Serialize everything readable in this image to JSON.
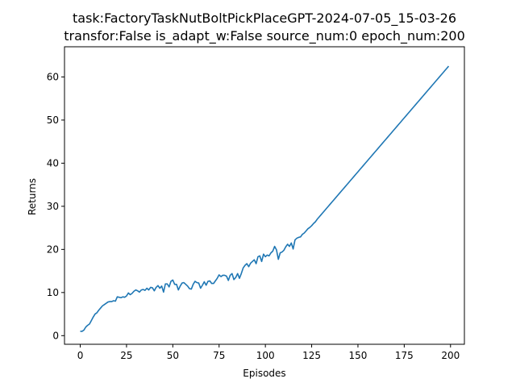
{
  "chart_data": {
    "type": "line",
    "title_line1": "task:FactoryTaskNutBoltPickPlaceGPT-2024-07-05_15-03-26",
    "title_line2": "transfor:False  is_adapt_w:False source_num:0   epoch_num:200",
    "xlabel": "Episodes",
    "ylabel": "Returns",
    "xlim": [
      -8.5,
      207.5
    ],
    "ylim": [
      -2.0,
      67.0
    ],
    "xticks": [
      0,
      25,
      50,
      75,
      100,
      125,
      150,
      175,
      200
    ],
    "yticks": [
      0,
      10,
      20,
      30,
      40,
      50,
      60
    ],
    "grid": false,
    "line_color": "#1f77b4",
    "series": [
      {
        "x": [
          0,
          1,
          2,
          3,
          4,
          5,
          6,
          7,
          8,
          9,
          10,
          11,
          12,
          13,
          14,
          15,
          16,
          17,
          18,
          19,
          20,
          21,
          22,
          23,
          24,
          25,
          26,
          27,
          28,
          29,
          30,
          31,
          32,
          33,
          34,
          35,
          36,
          37,
          38,
          39,
          40,
          41,
          42,
          43,
          44,
          45,
          46,
          47,
          48,
          49,
          50,
          51,
          52,
          53,
          54,
          55,
          56,
          57,
          58,
          59,
          60,
          61,
          62,
          63,
          64,
          65,
          66,
          67,
          68,
          69,
          70,
          71,
          72,
          73,
          74,
          75,
          76,
          77,
          78,
          79,
          80,
          81,
          82,
          83,
          84,
          85,
          86,
          87,
          88,
          89,
          90,
          91,
          92,
          93,
          94,
          95,
          96,
          97,
          98,
          99,
          100,
          101,
          102,
          103,
          104,
          105,
          106,
          107,
          108,
          109,
          110,
          111,
          112,
          113,
          114,
          115,
          116,
          117,
          118,
          119,
          120,
          121,
          122,
          123,
          124,
          125,
          126,
          127,
          128,
          129,
          130,
          131,
          132,
          133,
          134,
          135,
          136,
          137,
          138,
          139,
          140,
          141,
          142,
          143,
          144,
          145,
          146,
          147,
          148,
          149,
          150,
          151,
          152,
          153,
          154,
          155,
          156,
          157,
          158,
          159,
          160,
          161,
          162,
          163,
          164,
          165,
          166,
          167,
          168,
          169,
          170,
          171,
          172,
          173,
          174,
          175,
          176,
          177,
          178,
          179,
          180,
          181,
          182,
          183,
          184,
          185,
          186,
          187,
          188,
          189,
          190,
          191,
          192,
          193,
          194,
          195,
          196,
          197,
          198,
          199
        ],
        "y": [
          1.0,
          1.0,
          1.3,
          2.0,
          2.4,
          2.7,
          3.5,
          4.3,
          5.0,
          5.3,
          5.9,
          6.4,
          6.9,
          7.2,
          7.5,
          7.8,
          7.9,
          7.9,
          8.1,
          8.0,
          9.0,
          8.9,
          8.8,
          9.0,
          8.9,
          9.2,
          9.9,
          9.5,
          9.8,
          10.3,
          10.6,
          10.4,
          10.1,
          10.6,
          10.7,
          10.5,
          11.0,
          10.6,
          11.2,
          11.1,
          10.4,
          11.2,
          11.6,
          11.0,
          11.5,
          10.1,
          12.0,
          12.0,
          11.3,
          12.6,
          12.9,
          11.9,
          11.9,
          10.6,
          11.5,
          12.2,
          12.3,
          11.9,
          11.5,
          10.9,
          10.8,
          11.9,
          12.6,
          12.3,
          12.2,
          11.0,
          11.7,
          12.5,
          11.7,
          12.6,
          12.7,
          12.1,
          12.1,
          12.7,
          13.3,
          14.1,
          13.7,
          14.0,
          14.0,
          13.8,
          12.8,
          14.0,
          14.4,
          13.0,
          13.5,
          14.4,
          13.3,
          14.4,
          15.7,
          16.3,
          16.7,
          16.0,
          16.8,
          17.2,
          17.6,
          16.7,
          18.3,
          18.5,
          17.2,
          18.9,
          18.3,
          18.7,
          18.5,
          19.2,
          19.6,
          20.7,
          19.9,
          17.7,
          19.2,
          19.4,
          19.8,
          20.6,
          21.2,
          20.7,
          21.5,
          20.1,
          22.2,
          22.6,
          22.8,
          22.9,
          23.5,
          23.8,
          24.3,
          24.8,
          25.1,
          25.5,
          26.0,
          26.4,
          27.0,
          27.5,
          28.0,
          28.5,
          29.0,
          29.5,
          30.0,
          30.5,
          31.0,
          31.5,
          32.0,
          32.5,
          33.0,
          33.5,
          34.0,
          34.5,
          35.0,
          35.5,
          36.0,
          36.5,
          37.0,
          37.5,
          38.0,
          38.5,
          39.0,
          39.5,
          40.0,
          40.5,
          41.0,
          41.5,
          42.0,
          42.5,
          43.0,
          43.5,
          44.0,
          44.5,
          45.0,
          45.5,
          46.0,
          46.5,
          47.0,
          47.5,
          48.0,
          48.5,
          49.0,
          49.5,
          50.0,
          50.5,
          51.0,
          51.5,
          52.0,
          52.5,
          53.0,
          53.5,
          54.0,
          54.5,
          55.0,
          55.5,
          56.0,
          56.5,
          57.0,
          57.5,
          58.0,
          58.5,
          59.0,
          59.5,
          60.0,
          60.5,
          61.0,
          61.5,
          62.0,
          62.5
        ]
      }
    ]
  }
}
